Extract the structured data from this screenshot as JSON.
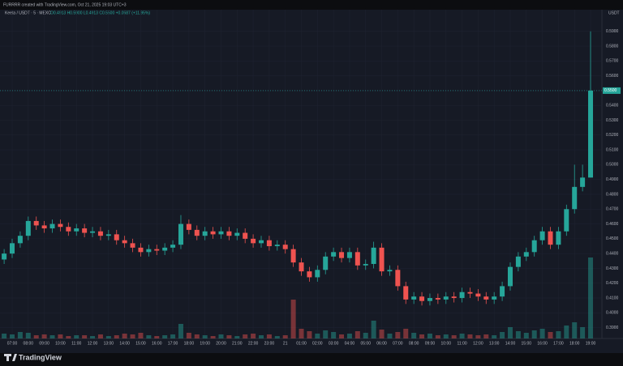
{
  "header": {
    "credit": "FURRRR created with TradingView.com, Oct 21, 2025 19:03 UTC+3"
  },
  "chart_data": {
    "type": "candlestick",
    "symbol": "Keeta / USDT · 5 · MEXC",
    "ohlc_readout": "O0.4913 H0.5900 L0.4913 C0.5500 +0.0587 (+11.95%)",
    "currency": "USDT",
    "categories": [
      null,
      "07:00",
      null,
      "08:00",
      null,
      "09:00",
      null,
      "10:00",
      null,
      "11:00",
      null,
      "12:00",
      null,
      "13:00",
      null,
      "14:00",
      null,
      "15:00",
      null,
      "16:00",
      null,
      "17:00",
      null,
      "18:00",
      null,
      "19:00",
      null,
      "20:00",
      null,
      "21:00",
      null,
      "22:00",
      null,
      "23:00",
      null,
      "21",
      null,
      "01:00",
      null,
      "02:00",
      null,
      "03:00",
      null,
      "04:00",
      null,
      "05:00",
      null,
      "06:00",
      null,
      "07:00",
      null,
      "08:00",
      null,
      "09:00",
      null,
      "10:00",
      null,
      "11:00",
      null,
      "12:00",
      null,
      "13:00",
      null,
      "14:00",
      null,
      "15:00",
      null,
      "16:00",
      null,
      "17:00",
      null,
      "18:00",
      null,
      "19:00"
    ],
    "open": [
      0.436,
      0.44,
      0.447,
      0.452,
      0.462,
      0.459,
      0.457,
      0.46,
      0.458,
      0.455,
      0.457,
      0.454,
      0.455,
      0.452,
      0.453,
      0.449,
      0.447,
      0.444,
      0.441,
      0.443,
      0.442,
      0.444,
      0.446,
      0.46,
      0.456,
      0.452,
      0.455,
      0.453,
      0.455,
      0.452,
      0.454,
      0.45,
      0.447,
      0.449,
      0.445,
      0.446,
      0.443,
      0.434,
      0.428,
      0.424,
      0.429,
      0.438,
      0.441,
      0.437,
      0.441,
      0.432,
      0.433,
      0.444,
      0.428,
      0.429,
      0.418,
      0.409,
      0.411,
      0.408,
      0.41,
      0.409,
      0.411,
      0.41,
      0.414,
      0.413,
      0.411,
      0.409,
      0.411,
      0.418,
      0.431,
      0.438,
      0.441,
      0.449,
      0.455,
      0.446,
      0.455,
      0.47,
      0.485,
      0.4913
    ],
    "high": [
      0.443,
      0.45,
      0.455,
      0.465,
      0.465,
      0.462,
      0.463,
      0.463,
      0.461,
      0.46,
      0.46,
      0.458,
      0.458,
      0.456,
      0.456,
      0.452,
      0.45,
      0.447,
      0.446,
      0.446,
      0.447,
      0.449,
      0.466,
      0.463,
      0.459,
      0.458,
      0.458,
      0.458,
      0.458,
      0.457,
      0.457,
      0.453,
      0.452,
      0.452,
      0.449,
      0.449,
      0.446,
      0.437,
      0.431,
      0.432,
      0.441,
      0.444,
      0.444,
      0.444,
      0.444,
      0.436,
      0.448,
      0.447,
      0.432,
      0.432,
      0.421,
      0.414,
      0.414,
      0.413,
      0.413,
      0.414,
      0.414,
      0.417,
      0.417,
      0.416,
      0.414,
      0.414,
      0.421,
      0.434,
      0.441,
      0.444,
      0.452,
      0.458,
      0.458,
      0.458,
      0.473,
      0.5,
      0.5,
      0.59
    ],
    "low": [
      0.433,
      0.437,
      0.444,
      0.449,
      0.456,
      0.454,
      0.454,
      0.455,
      0.452,
      0.452,
      0.451,
      0.451,
      0.449,
      0.449,
      0.446,
      0.444,
      0.441,
      0.438,
      0.438,
      0.439,
      0.439,
      0.441,
      0.443,
      0.453,
      0.449,
      0.449,
      0.45,
      0.45,
      0.449,
      0.449,
      0.447,
      0.444,
      0.444,
      0.442,
      0.442,
      0.44,
      0.431,
      0.425,
      0.421,
      0.421,
      0.426,
      0.435,
      0.434,
      0.434,
      0.429,
      0.429,
      0.43,
      0.425,
      0.425,
      0.415,
      0.406,
      0.406,
      0.405,
      0.405,
      0.406,
      0.406,
      0.407,
      0.407,
      0.41,
      0.408,
      0.406,
      0.406,
      0.408,
      0.415,
      0.428,
      0.435,
      0.438,
      0.446,
      0.443,
      0.443,
      0.452,
      0.467,
      0.482,
      0.4913
    ],
    "close": [
      0.44,
      0.447,
      0.452,
      0.462,
      0.459,
      0.457,
      0.46,
      0.458,
      0.455,
      0.457,
      0.454,
      0.455,
      0.452,
      0.453,
      0.449,
      0.447,
      0.444,
      0.441,
      0.443,
      0.442,
      0.444,
      0.446,
      0.46,
      0.456,
      0.452,
      0.455,
      0.453,
      0.455,
      0.452,
      0.454,
      0.45,
      0.447,
      0.449,
      0.445,
      0.446,
      0.443,
      0.434,
      0.428,
      0.424,
      0.429,
      0.438,
      0.441,
      0.437,
      0.441,
      0.432,
      0.433,
      0.444,
      0.428,
      0.429,
      0.418,
      0.409,
      0.411,
      0.408,
      0.41,
      0.409,
      0.411,
      0.41,
      0.414,
      0.413,
      0.411,
      0.409,
      0.411,
      0.418,
      0.431,
      0.438,
      0.441,
      0.449,
      0.455,
      0.446,
      0.455,
      0.47,
      0.485,
      0.4913,
      0.55
    ],
    "volume": [
      6,
      5,
      8,
      7,
      4,
      5,
      4,
      5,
      3,
      4,
      4,
      3,
      5,
      3,
      4,
      6,
      5,
      7,
      4,
      3,
      4,
      5,
      18,
      7,
      5,
      4,
      3,
      5,
      4,
      3,
      5,
      6,
      4,
      5,
      3,
      4,
      48,
      12,
      9,
      6,
      10,
      8,
      5,
      6,
      9,
      7,
      22,
      11,
      6,
      8,
      12,
      7,
      5,
      6,
      4,
      5,
      4,
      6,
      5,
      4,
      5,
      4,
      8,
      14,
      9,
      7,
      10,
      12,
      8,
      9,
      16,
      20,
      14,
      100
    ],
    "ylim": [
      0.3827,
      0.6046
    ],
    "yticks": [
      {
        "value": 0.39,
        "label": "0.3900"
      },
      {
        "value": 0.4,
        "label": "0.4000"
      },
      {
        "value": 0.41,
        "label": "0.4100"
      },
      {
        "value": 0.42,
        "label": "0.4200"
      },
      {
        "value": 0.43,
        "label": "0.4300"
      },
      {
        "value": 0.44,
        "label": "0.4400"
      },
      {
        "value": 0.45,
        "label": "0.4500"
      },
      {
        "value": 0.46,
        "label": "0.4600"
      },
      {
        "value": 0.47,
        "label": "0.4700"
      },
      {
        "value": 0.48,
        "label": "0.4800"
      },
      {
        "value": 0.49,
        "label": "0.4900"
      },
      {
        "value": 0.5,
        "label": "0.5000"
      },
      {
        "value": 0.51,
        "label": "0.5100"
      },
      {
        "value": 0.52,
        "label": "0.5200"
      },
      {
        "value": 0.53,
        "label": "0.5300"
      },
      {
        "value": 0.54,
        "label": "0.5400"
      },
      {
        "value": 0.55,
        "label": "0.5500"
      },
      {
        "value": 0.56,
        "label": "0.5600"
      },
      {
        "value": 0.57,
        "label": "0.5700"
      },
      {
        "value": 0.58,
        "label": "0.5800"
      },
      {
        "value": 0.59,
        "label": "0.5900"
      }
    ],
    "last_price": {
      "value": 0.55,
      "label": "0.5500"
    },
    "up_color": "#26a69a",
    "down_color": "#ef5350",
    "grid": true
  },
  "footer": {
    "brand": "TradingView"
  }
}
